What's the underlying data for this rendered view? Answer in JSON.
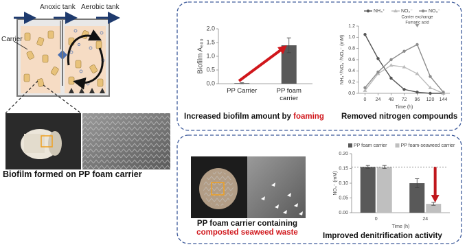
{
  "diagram": {
    "tanks": [
      "Anoxic tank",
      "Aerobic tank"
    ],
    "carrier": "Carrier"
  },
  "captions": {
    "biofilm_formed": "Biofilm formed on PP foam carrier",
    "increased": [
      "Increased biofilm amount by",
      "foaming"
    ],
    "removed": "Removed nitrogen compounds",
    "seaweed": [
      "PP foam carrier containing",
      "composted seaweed waste"
    ],
    "improved": "Improved denitrification activity"
  },
  "chart_data": [
    {
      "type": "bar",
      "y_label": "Biofilm A₆₀₀",
      "categories": [
        "PP Carrier",
        "PP foam carrier"
      ],
      "values": [
        0.02,
        1.4
      ],
      "errors": [
        0.02,
        0.27
      ],
      "color": "#595959",
      "ylim": [
        0,
        2
      ],
      "yticks": [
        {
          "value": 0,
          "label": "0.0"
        },
        {
          "value": 0.5,
          "label": "0.5"
        },
        {
          "value": 1,
          "label": "1.0"
        },
        {
          "value": 1.5,
          "label": "1.5"
        },
        {
          "value": 2,
          "label": "2.0"
        }
      ]
    },
    {
      "type": "line",
      "x_label": "Time (h)",
      "y_label": "NH₄⁺/NO₂⁻/NO₃⁻ (mM)",
      "x": [
        0,
        24,
        48,
        72,
        96,
        120,
        144
      ],
      "series": [
        {
          "name": "NH₄⁺",
          "color": "#555555",
          "marker": "circle",
          "values": [
            1.05,
            0.62,
            0.27,
            0.07,
            0.02,
            0.0,
            0.0
          ]
        },
        {
          "name": "NO₂⁻",
          "color": "#bbbbbb",
          "marker": "triangle",
          "values": [
            0.05,
            0.35,
            0.5,
            0.47,
            0.35,
            0.1,
            0.0
          ]
        },
        {
          "name": "NO₃⁻",
          "color": "#8c8c8c",
          "marker": "circle",
          "values": [
            0.1,
            0.38,
            0.6,
            0.75,
            0.87,
            0.3,
            0.02
          ]
        }
      ],
      "annotations": [
        "Carrier exchange",
        "Fumaric acid"
      ],
      "xlim": [
        -12,
        156
      ],
      "xticks": [
        0,
        24,
        48,
        72,
        96,
        120,
        144
      ],
      "ylim": [
        0,
        1.2
      ],
      "yticks": [
        {
          "value": 0,
          "label": "0.0"
        },
        {
          "value": 0.2,
          "label": "0.2"
        },
        {
          "value": 0.4,
          "label": "0.4"
        },
        {
          "value": 0.6,
          "label": "0.6"
        },
        {
          "value": 0.8,
          "label": "0.8"
        },
        {
          "value": 1,
          "label": "1.0"
        },
        {
          "value": 1.2,
          "label": "1.2"
        }
      ]
    },
    {
      "type": "bar",
      "x_label": "Time (h)",
      "y_label": "NO₃⁻ (mM)",
      "categories": [
        "0",
        "24"
      ],
      "series": [
        {
          "name": "PP foam carrier",
          "color": "#595959",
          "values": [
            0.155,
            0.1
          ],
          "errors": [
            0.005,
            0.015
          ]
        },
        {
          "name": "PP foam-seaweed carrier",
          "color": "#bfbfbf",
          "values": [
            0.155,
            0.03
          ],
          "errors": [
            0.005,
            0.005
          ]
        }
      ],
      "ylim": [
        0,
        0.2
      ],
      "yticks": [
        {
          "value": 0,
          "label": "0.00"
        },
        {
          "value": 0.05,
          "label": "0.05"
        },
        {
          "value": 0.1,
          "label": "0.10"
        },
        {
          "value": 0.15,
          "label": "0.15"
        },
        {
          "value": 0.2,
          "label": "0.20"
        }
      ]
    }
  ]
}
